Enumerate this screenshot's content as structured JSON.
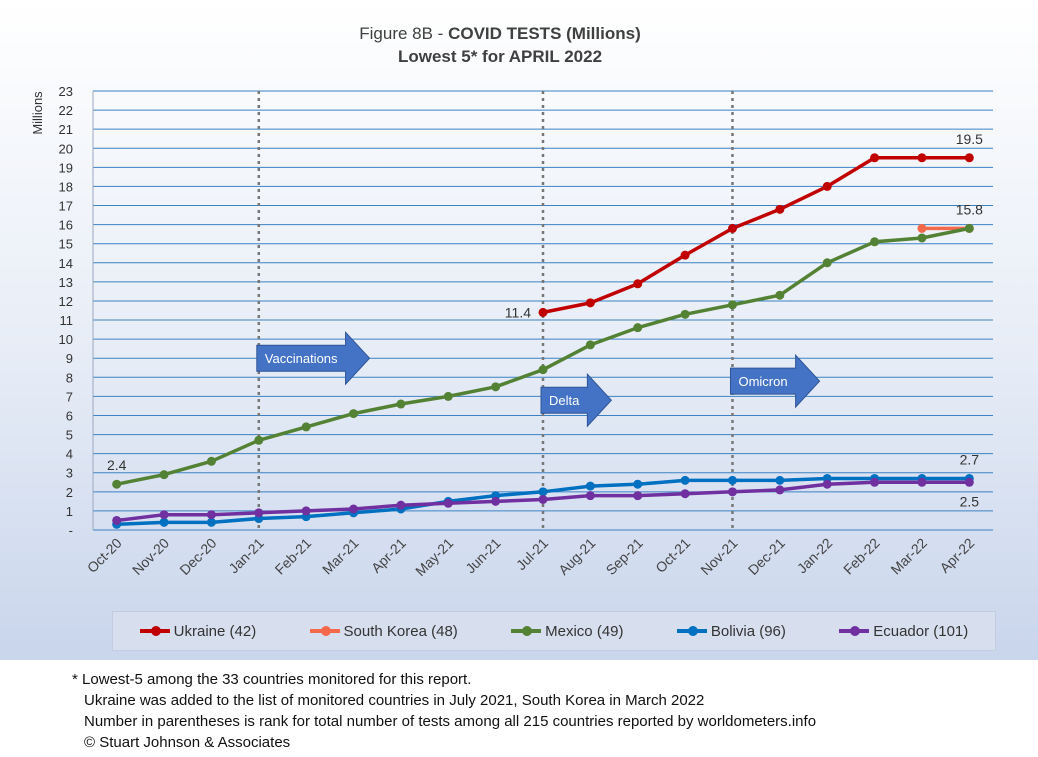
{
  "chart_data": {
    "type": "line",
    "title_prefix": "Figure 8B - ",
    "title_bold": "COVID TESTS (Millions)",
    "subtitle": "Lowest 5* for APRIL 2022",
    "ylabel": "Millions",
    "xlabel": "",
    "ylim": [
      0,
      23
    ],
    "ytick_labels": [
      "-",
      "1",
      "2",
      "3",
      "4",
      "5",
      "6",
      "7",
      "8",
      "9",
      "10",
      "11",
      "12",
      "13",
      "14",
      "15",
      "16",
      "17",
      "18",
      "19",
      "20",
      "21",
      "22",
      "23"
    ],
    "categories": [
      "Oct-20",
      "Nov-20",
      "Dec-20",
      "Jan-21",
      "Feb-21",
      "Mar-21",
      "Apr-21",
      "May-21",
      "Jun-21",
      "Jul-21",
      "Aug-21",
      "Sep-21",
      "Oct-21",
      "Nov-21",
      "Dec-21",
      "Jan-22",
      "Feb-22",
      "Mar-22",
      "Apr-22"
    ],
    "grid": true,
    "legend_position": "bottom",
    "series": [
      {
        "name": "Ukraine (42)",
        "color": "#c00000",
        "values": [
          null,
          null,
          null,
          null,
          null,
          null,
          null,
          null,
          null,
          11.4,
          11.9,
          12.9,
          14.4,
          15.8,
          16.8,
          18.0,
          19.5,
          19.5,
          19.5
        ]
      },
      {
        "name": "South Korea (48)",
        "color": "#f4694c",
        "values": [
          null,
          null,
          null,
          null,
          null,
          null,
          null,
          null,
          null,
          null,
          null,
          null,
          null,
          null,
          null,
          null,
          null,
          15.8,
          15.8
        ]
      },
      {
        "name": "Mexico (49)",
        "color": "#548235",
        "values": [
          2.4,
          2.9,
          3.6,
          4.7,
          5.4,
          6.1,
          6.6,
          7.0,
          7.5,
          8.4,
          9.7,
          10.6,
          11.3,
          11.8,
          12.3,
          14.0,
          15.1,
          15.3,
          15.8
        ]
      },
      {
        "name": "Bolivia (96)",
        "color": "#0070c0",
        "values": [
          0.3,
          0.4,
          0.4,
          0.6,
          0.7,
          0.9,
          1.1,
          1.5,
          1.8,
          2.0,
          2.3,
          2.4,
          2.6,
          2.6,
          2.6,
          2.7,
          2.7,
          2.7,
          2.7
        ]
      },
      {
        "name": "Ecuador (101)",
        "color": "#7030a0",
        "values": [
          0.5,
          0.8,
          0.8,
          0.9,
          1.0,
          1.1,
          1.3,
          1.4,
          1.5,
          1.6,
          1.8,
          1.8,
          1.9,
          2.0,
          2.1,
          2.4,
          2.5,
          2.5,
          2.5
        ]
      }
    ],
    "data_labels": [
      {
        "text": "2.4",
        "series": 2,
        "index": 0,
        "pos": "above"
      },
      {
        "text": "11.4",
        "series": 0,
        "index": 9,
        "pos": "left"
      },
      {
        "text": "19.5",
        "series": 0,
        "index": 18,
        "pos": "above"
      },
      {
        "text": "15.8",
        "series": 2,
        "index": 18,
        "pos": "above"
      },
      {
        "text": "2.7",
        "series": 3,
        "index": 18,
        "pos": "above"
      },
      {
        "text": "2.5",
        "series": 4,
        "index": 18,
        "pos": "below"
      }
    ],
    "annotations": [
      {
        "text": "Vaccinations",
        "index": 3,
        "level": 9.0
      },
      {
        "text": "Delta",
        "index": 9,
        "level": 6.8
      },
      {
        "text": "Omicron",
        "index": 13,
        "level": 7.8
      }
    ],
    "vlines_at": [
      3,
      9,
      13
    ]
  },
  "footnotes": {
    "line1": "* Lowest-5 among the 33 countries monitored for this report.",
    "line2": "Ukraine was added to the list of monitored countries in July 2021, South Korea in March 2022",
    "line3": "Number in parentheses is rank for total number of tests among all 215 countries reported by worldometers.info",
    "line4": "© Stuart Johnson & Associates"
  }
}
